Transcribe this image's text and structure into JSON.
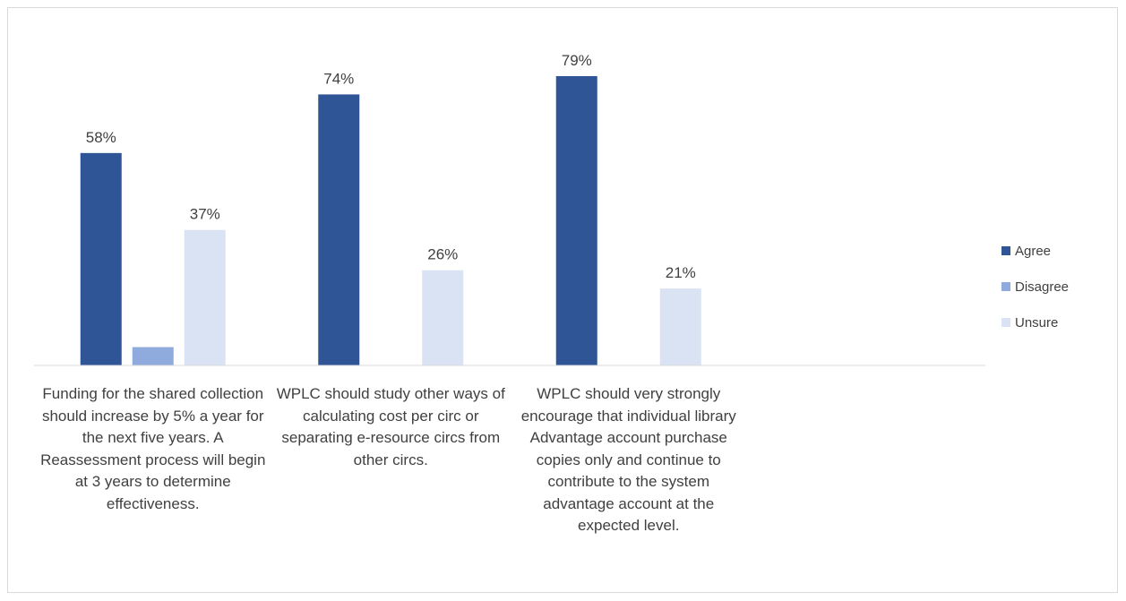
{
  "chart_data": {
    "type": "bar",
    "categories": [
      "Funding for the shared collection should increase by 5% a year for the next five years. A Reassessment process will begin at 3 years to determine effectiveness.",
      "WPLC should study other ways of calculating cost per circ or separating e-resource circs from other circs.",
      "WPLC should very strongly encourage that individual library Advantage account purchase copies only and continue to contribute to the system advantage account at the expected level.",
      null
    ],
    "series": [
      {
        "name": "Agree",
        "color": "#2f5597",
        "values": [
          58,
          74,
          79,
          null
        ],
        "value_labels": [
          "58%",
          "74%",
          "79%",
          null
        ]
      },
      {
        "name": "Disagree",
        "color": "#8faadc",
        "values": [
          5,
          null,
          null,
          null
        ]
      },
      {
        "name": "Unsure",
        "color": "#dae3f3",
        "values": [
          37,
          26,
          21,
          null
        ],
        "value_labels": [
          "37%",
          "26%",
          "21%",
          null
        ]
      }
    ],
    "ylim": [
      0,
      90
    ],
    "legend": "right"
  }
}
